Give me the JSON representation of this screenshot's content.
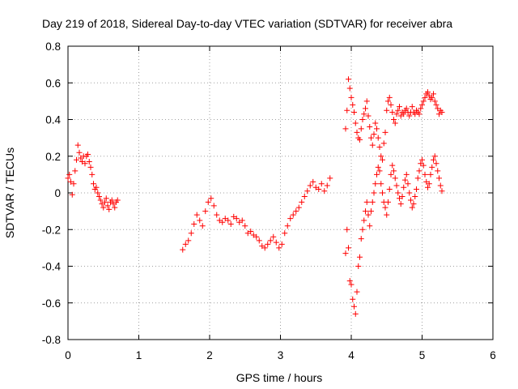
{
  "chart_data": {
    "type": "scatter",
    "title": "Day 219 of 2018, Sidereal Day-to-day VTEC variation (SDTVAR) for receiver abra",
    "xlabel": "GPS time / hours",
    "ylabel": "SDTVAR / TECUs",
    "xlim": [
      0,
      6
    ],
    "ylim": [
      -0.8,
      0.8
    ],
    "xticks": [
      0,
      1,
      2,
      3,
      4,
      5,
      6
    ],
    "xtick_labels": [
      "0",
      "1",
      "2",
      "3",
      "4",
      "5",
      "6"
    ],
    "yticks": [
      0.8,
      0.6,
      0.4,
      0.2,
      0,
      -0.2,
      -0.4,
      -0.6,
      -0.8
    ],
    "ytick_labels": [
      "0.8",
      "0.6",
      "0.4",
      "0.2",
      "0",
      "-0.2",
      "-0.4",
      "-0.6",
      "-0.8"
    ],
    "grid": true,
    "marker": "+",
    "color": "#ff0000",
    "series": [
      {
        "name": "SDTVAR",
        "x": [
          0.0,
          0.02,
          0.04,
          0.06,
          0.08,
          0.1,
          0.12,
          0.14,
          0.16,
          0.18,
          0.2,
          0.22,
          0.24,
          0.26,
          0.28,
          0.3,
          0.32,
          0.34,
          0.36,
          0.38,
          0.4,
          0.42,
          0.44,
          0.46,
          0.48,
          0.5,
          0.52,
          0.54,
          0.56,
          0.58,
          0.6,
          0.62,
          0.64,
          0.66,
          0.68,
          0.7,
          1.62,
          1.66,
          1.7,
          1.74,
          1.78,
          1.82,
          1.86,
          1.9,
          1.94,
          1.98,
          2.02,
          2.06,
          2.1,
          2.14,
          2.18,
          2.22,
          2.26,
          2.3,
          2.34,
          2.38,
          2.42,
          2.46,
          2.5,
          2.54,
          2.58,
          2.62,
          2.66,
          2.7,
          2.74,
          2.78,
          2.82,
          2.86,
          2.9,
          2.94,
          2.98,
          3.02,
          3.06,
          3.1,
          3.14,
          3.18,
          3.22,
          3.26,
          3.3,
          3.34,
          3.38,
          3.42,
          3.46,
          3.5,
          3.54,
          3.58,
          3.62,
          3.66,
          3.7,
          3.92,
          3.94,
          3.96,
          3.98,
          4.0,
          4.02,
          4.04,
          4.06,
          4.08,
          4.1,
          4.12,
          4.14,
          4.16,
          4.18,
          4.2,
          4.22,
          4.24,
          4.26,
          4.28,
          4.3,
          4.32,
          4.34,
          4.36,
          4.38,
          4.4,
          4.42,
          4.44,
          4.46,
          4.48,
          4.5,
          4.52,
          4.54,
          4.56,
          4.58,
          4.6,
          4.62,
          4.64,
          4.66,
          4.68,
          4.7,
          4.72,
          4.74,
          4.76,
          4.78,
          4.8,
          4.82,
          4.84,
          4.86,
          4.88,
          4.9,
          4.92,
          4.94,
          4.96,
          4.98,
          5.0,
          5.02,
          5.04,
          5.06,
          5.08,
          5.1,
          5.12,
          5.14,
          5.16,
          5.18,
          5.2,
          5.22,
          5.24,
          5.26,
          5.28,
          3.92,
          3.94,
          3.96,
          3.98,
          4.0,
          4.02,
          4.04,
          4.06,
          4.08,
          4.1,
          4.12,
          4.14,
          4.16,
          4.18,
          4.2,
          4.22,
          4.24,
          4.26,
          4.28,
          4.3,
          4.32,
          4.34,
          4.36,
          4.38,
          4.4,
          4.42,
          4.44,
          4.46,
          4.48,
          4.5,
          4.52,
          4.54,
          4.56,
          4.58,
          4.6,
          4.62,
          4.64,
          4.66,
          4.68,
          4.7,
          4.72,
          4.74,
          4.76,
          4.78,
          4.8,
          4.82,
          4.84,
          4.86,
          4.88,
          4.9,
          4.92,
          4.94,
          4.96,
          4.98,
          5.0,
          5.02,
          5.04,
          5.06,
          5.08,
          5.1,
          5.12,
          5.14,
          5.16,
          5.18,
          5.2,
          5.22,
          5.24,
          5.26,
          5.28
        ],
        "y": [
          0.08,
          0.1,
          0.06,
          -0.01,
          0.05,
          0.12,
          0.18,
          0.26,
          0.22,
          0.19,
          0.17,
          0.2,
          0.16,
          0.2,
          0.21,
          0.17,
          0.14,
          0.1,
          0.05,
          0.02,
          0.03,
          0.0,
          -0.02,
          -0.04,
          -0.06,
          -0.08,
          -0.05,
          -0.03,
          -0.07,
          -0.09,
          -0.05,
          -0.04,
          -0.06,
          -0.08,
          -0.05,
          -0.04,
          -0.31,
          -0.28,
          -0.26,
          -0.22,
          -0.17,
          -0.12,
          -0.15,
          -0.18,
          -0.1,
          -0.05,
          -0.03,
          -0.07,
          -0.12,
          -0.15,
          -0.16,
          -0.14,
          -0.15,
          -0.17,
          -0.13,
          -0.14,
          -0.16,
          -0.15,
          -0.18,
          -0.22,
          -0.21,
          -0.23,
          -0.24,
          -0.26,
          -0.29,
          -0.3,
          -0.28,
          -0.26,
          -0.24,
          -0.27,
          -0.3,
          -0.28,
          -0.22,
          -0.18,
          -0.14,
          -0.12,
          -0.1,
          -0.08,
          -0.05,
          -0.02,
          0.01,
          0.04,
          0.06,
          0.03,
          0.02,
          0.05,
          0.01,
          0.04,
          0.08,
          0.35,
          0.45,
          0.62,
          0.57,
          0.52,
          0.48,
          0.44,
          0.38,
          0.33,
          0.3,
          0.29,
          0.35,
          0.4,
          0.43,
          0.46,
          0.5,
          0.42,
          0.36,
          0.3,
          0.26,
          0.32,
          0.38,
          0.35,
          0.3,
          0.25,
          0.2,
          0.18,
          0.27,
          0.33,
          0.45,
          0.5,
          0.52,
          0.48,
          0.44,
          0.4,
          0.38,
          0.43,
          0.45,
          0.47,
          0.42,
          0.44,
          0.43,
          0.45,
          0.46,
          0.44,
          0.42,
          0.44,
          0.47,
          0.44,
          0.43,
          0.45,
          0.44,
          0.43,
          0.46,
          0.48,
          0.5,
          0.52,
          0.54,
          0.55,
          0.53,
          0.51,
          0.52,
          0.54,
          0.5,
          0.48,
          0.46,
          0.43,
          0.45,
          0.44,
          -0.33,
          -0.2,
          -0.3,
          -0.48,
          -0.5,
          -0.58,
          -0.62,
          -0.66,
          -0.54,
          -0.4,
          -0.35,
          -0.25,
          -0.2,
          -0.15,
          -0.1,
          -0.05,
          -0.12,
          -0.18,
          -0.1,
          -0.05,
          0.0,
          0.05,
          0.1,
          0.14,
          0.12,
          0.05,
          0.0,
          -0.05,
          -0.08,
          -0.12,
          -0.05,
          0.02,
          0.1,
          0.15,
          0.12,
          0.08,
          0.04,
          0.0,
          -0.03,
          -0.06,
          -0.02,
          0.03,
          0.07,
          0.1,
          0.05,
          0.0,
          -0.04,
          -0.08,
          -0.06,
          -0.02,
          0.02,
          0.08,
          0.12,
          0.16,
          0.18,
          0.15,
          0.1,
          0.06,
          0.03,
          0.05,
          0.1,
          0.14,
          0.18,
          0.2,
          0.16,
          0.12,
          0.08,
          0.04,
          0.01
        ]
      }
    ]
  }
}
